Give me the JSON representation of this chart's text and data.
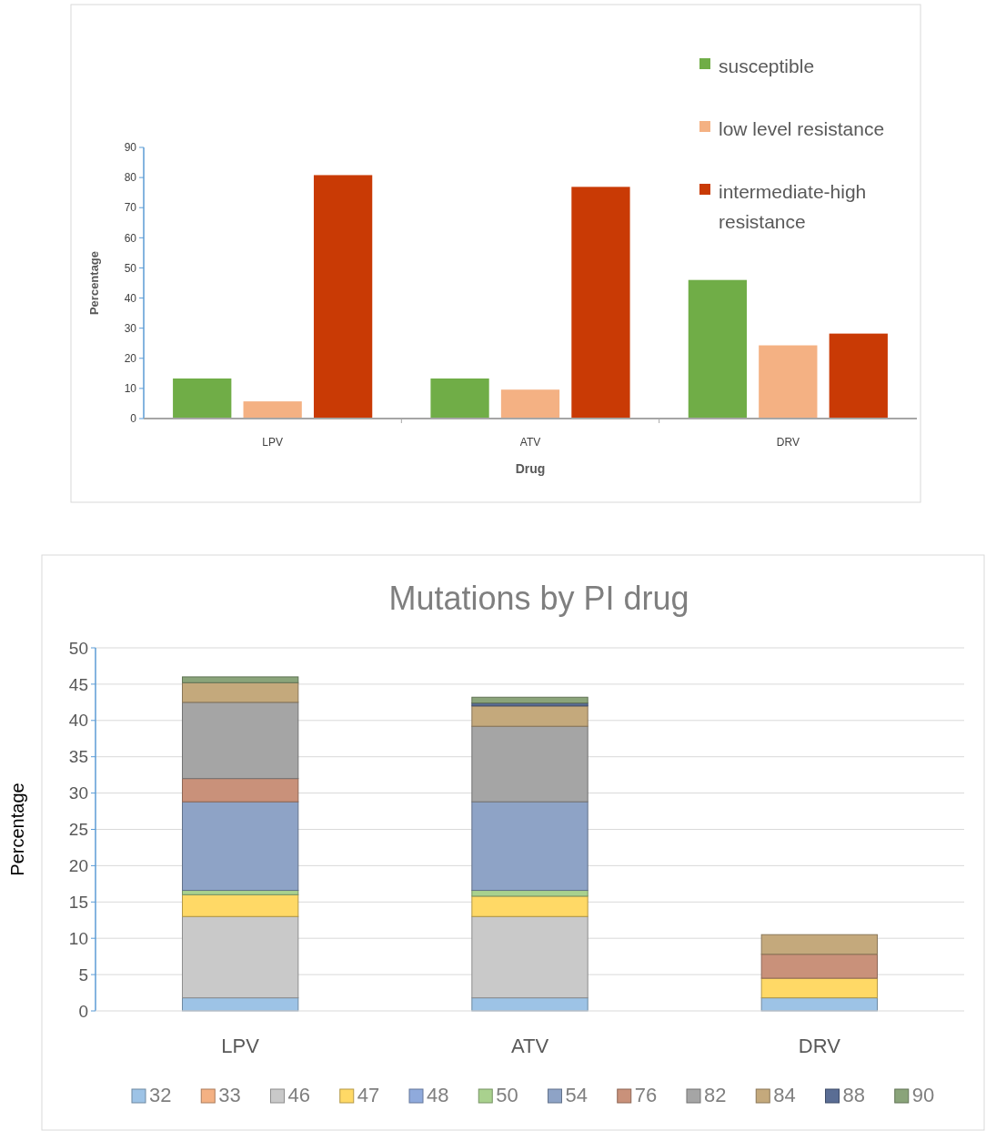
{
  "chart_data": [
    {
      "type": "bar",
      "xlabel": "Drug",
      "ylabel": "Percentage",
      "categories": [
        "LPV",
        "ATV",
        "DRV"
      ],
      "series": [
        {
          "name": "susceptible",
          "color": "#70ad47",
          "values": [
            13.3,
            13.3,
            46
          ]
        },
        {
          "name": "low level resistance",
          "color": "#f4b183",
          "values": [
            5.7,
            9.6,
            24.3
          ]
        },
        {
          "name": "intermediate-high resistance",
          "color": "#c93a05",
          "values": [
            80.8,
            76.9,
            28.2
          ]
        }
      ],
      "ylim": [
        0,
        90
      ],
      "yticks": [
        0,
        10,
        20,
        30,
        40,
        50,
        60,
        70,
        80,
        90
      ],
      "grid": false,
      "legend": "top right"
    },
    {
      "type": "bar",
      "title": "Mutations by PI drug",
      "ylabel": "Percentage",
      "categories": [
        "LPV",
        "ATV",
        "DRV"
      ],
      "stacked": true,
      "series": [
        {
          "name": "32",
          "color": "#9dc3e6",
          "values": [
            1.8,
            1.8,
            1.8
          ]
        },
        {
          "name": "33",
          "color": "#f4b183",
          "values": [
            0,
            0,
            0
          ]
        },
        {
          "name": "46",
          "color": "#c9c9c9",
          "values": [
            11.2,
            11.2,
            0
          ]
        },
        {
          "name": "47",
          "color": "#ffd966",
          "values": [
            3,
            2.8,
            2.7
          ]
        },
        {
          "name": "48",
          "color": "#8faadc",
          "values": [
            0,
            0,
            0
          ]
        },
        {
          "name": "50",
          "color": "#a9d18e",
          "values": [
            0.6,
            0.8,
            0
          ]
        },
        {
          "name": "54",
          "color": "#8ea3c6",
          "values": [
            12.2,
            12.2,
            0
          ]
        },
        {
          "name": "76",
          "color": "#c9917a",
          "values": [
            3.2,
            0,
            3.3
          ]
        },
        {
          "name": "82",
          "color": "#a5a5a5",
          "values": [
            10.5,
            10.4,
            0
          ]
        },
        {
          "name": "84",
          "color": "#c4a97c",
          "values": [
            2.7,
            2.8,
            2.7
          ]
        },
        {
          "name": "88",
          "color": "#5a6d94",
          "values": [
            0,
            0.4,
            0
          ]
        },
        {
          "name": "90",
          "color": "#8aa47a",
          "values": [
            0.8,
            0.8,
            0
          ]
        }
      ],
      "ylim": [
        0,
        50
      ],
      "yticks": [
        0,
        5,
        10,
        15,
        20,
        25,
        30,
        35,
        40,
        45,
        50
      ],
      "grid": "y",
      "legend": "bottom"
    }
  ]
}
